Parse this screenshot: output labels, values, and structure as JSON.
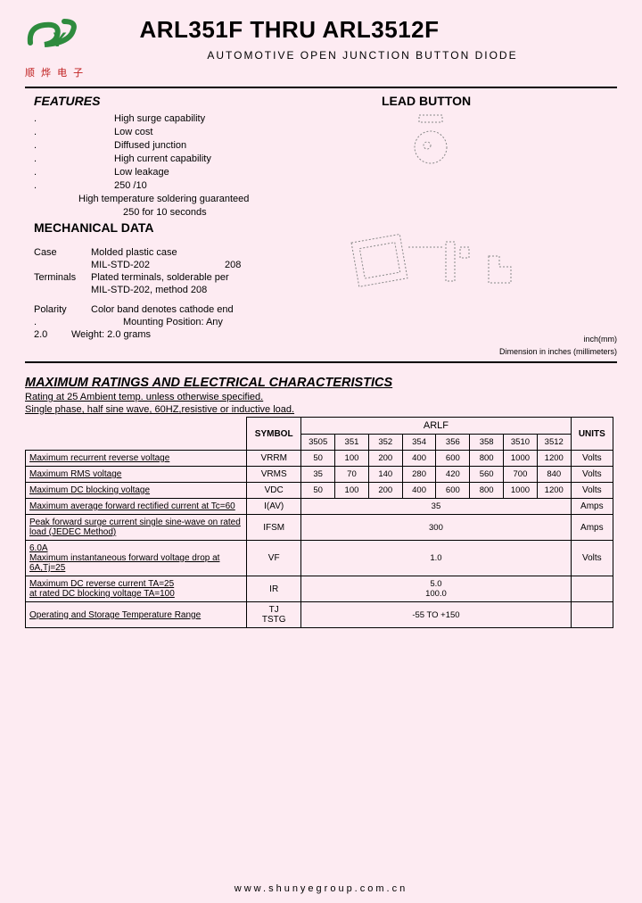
{
  "logo_chinese": "顺 烨 电 子",
  "header": {
    "title": "ARL351F THRU  ARL3512F",
    "subtitle": "AUTOMOTIVE    OPEN    JUNCTION    BUTTON DIODE"
  },
  "features": {
    "heading": "FEATURES",
    "items": [
      "High surge capability",
      "Low cost",
      "Diffused junction",
      "High current capability",
      "Low leakage"
    ],
    "extra1": "250   /10",
    "extra2": "High temperature soldering guaranteed",
    "extra3": "250     for 10 seconds"
  },
  "lead_button": "LEAD   BUTTON",
  "mechanical": {
    "heading": "MECHANICAL DATA",
    "case_label": "Case",
    "case_text": "Molded plastic case",
    "case_sub": "MIL-STD-202",
    "case_sub_right": "208",
    "terminals_label": "Terminals",
    "terminals_text": "Plated terminals, solderable per",
    "terminals_sub": "MIL-STD-202, method 208",
    "polarity_label": "Polarity",
    "polarity_text": "Color band denotes cathode end",
    "mount_label": "Mounting Position: Any",
    "weight_prefix": "2.0",
    "weight_text": "Weight: 2.0 grams",
    "inch_note": "inch(mm)",
    "dim_note": "Dimension in inches (millimeters)"
  },
  "ratings": {
    "heading": "MAXIMUM RATINGS AND ELECTRICAL CHARACTERISTICS",
    "note1": "Rating at 25     Ambient temp. unless otherwise specified.",
    "note2": "Single phase, half sine wave, 60HZ,resistive or inductive load."
  },
  "table": {
    "symbol_head": "SYMBOL",
    "arlf_head": "ARLF",
    "units_head": "UNITS",
    "sub_heads": [
      "3505",
      "351",
      "352",
      "354",
      "356",
      "358",
      "3510",
      "3512"
    ],
    "rows": [
      {
        "param": "Maximum recurrent reverse voltage",
        "symbol": "VRRM",
        "vals": [
          "50",
          "100",
          "200",
          "400",
          "600",
          "800",
          "1000",
          "1200"
        ],
        "units": "Volts",
        "merged": false
      },
      {
        "param": "Maximum RMS voltage",
        "symbol": "VRMS",
        "vals": [
          "35",
          "70",
          "140",
          "280",
          "420",
          "560",
          "700",
          "840"
        ],
        "units": "Volts",
        "merged": false
      },
      {
        "param": "Maximum DC blocking voltage",
        "symbol": "VDC",
        "vals": [
          "50",
          "100",
          "200",
          "400",
          "600",
          "800",
          "1000",
          "1200"
        ],
        "units": "Volts",
        "merged": false
      },
      {
        "param": "Maximum average forward rectified current at Tc=60",
        "symbol": "I(AV)",
        "val": "35",
        "units": "Amps",
        "merged": true
      },
      {
        "param": "Peak forward surge current single sine-wave on rated load (JEDEC Method)",
        "symbol": "IFSM",
        "val": "300",
        "units": "Amps",
        "merged": true
      },
      {
        "param": "6.0A\nMaximum instantaneous forward voltage drop at 6A,Tj=25",
        "symbol": "VF",
        "val": "1.0",
        "units": "Volts",
        "merged": true
      },
      {
        "param": "Maximum DC reverse current     TA=25\nat rated DC blocking voltage     TA=100",
        "symbol": "IR",
        "val": "5.0\n100.0",
        "units": "",
        "merged": true
      },
      {
        "param": "Operating and Storage Temperature Range",
        "symbol": "TJ\nTSTG",
        "val": "-55 TO +150",
        "units": "",
        "merged": true
      }
    ]
  },
  "footer": "www.shunyegroup.com.cn",
  "colors": {
    "bg": "#fdebf2",
    "logo_green": "#2e8b3e",
    "logo_red": "#c02020"
  }
}
